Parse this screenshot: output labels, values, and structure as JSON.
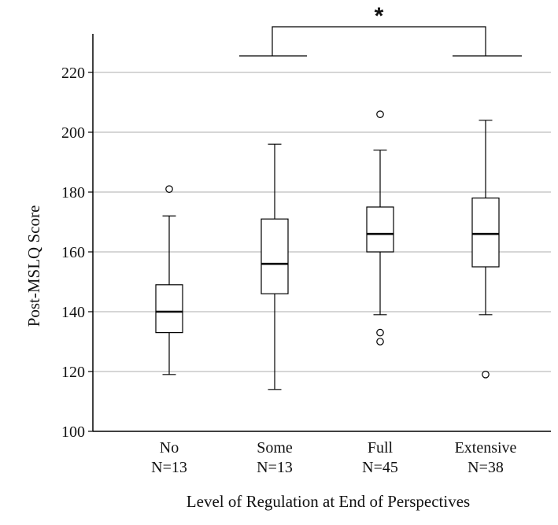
{
  "chart_data": {
    "type": "box",
    "categories": [
      "No",
      "Some",
      "Full",
      "Extensive"
    ],
    "n_labels": [
      "N=13",
      "N=13",
      "N=45",
      "N=38"
    ],
    "boxes": [
      {
        "category": "No",
        "whisker_low": 119,
        "q1": 133,
        "median": 140,
        "q3": 149,
        "whisker_high": 172,
        "outliers": [
          181
        ]
      },
      {
        "category": "Some",
        "whisker_low": 114,
        "q1": 146,
        "median": 156,
        "q3": 171,
        "whisker_high": 196,
        "outliers": []
      },
      {
        "category": "Full",
        "whisker_low": 139,
        "q1": 160,
        "median": 166,
        "q3": 175,
        "whisker_high": 194,
        "outliers": [
          206,
          133,
          130
        ]
      },
      {
        "category": "Extensive",
        "whisker_low": 139,
        "q1": 155,
        "median": 166,
        "q3": 178,
        "whisker_high": 204,
        "outliers": [
          119
        ]
      }
    ],
    "xlabel": "Level of Regulation at End of Perspectives",
    "ylabel": "Post-MSLQ Score",
    "ylim": [
      100,
      232
    ],
    "yticks": [
      100,
      120,
      140,
      160,
      180,
      200,
      220
    ],
    "grid": true,
    "significance": {
      "between": [
        "Some",
        "Extensive"
      ],
      "label": "*"
    }
  }
}
